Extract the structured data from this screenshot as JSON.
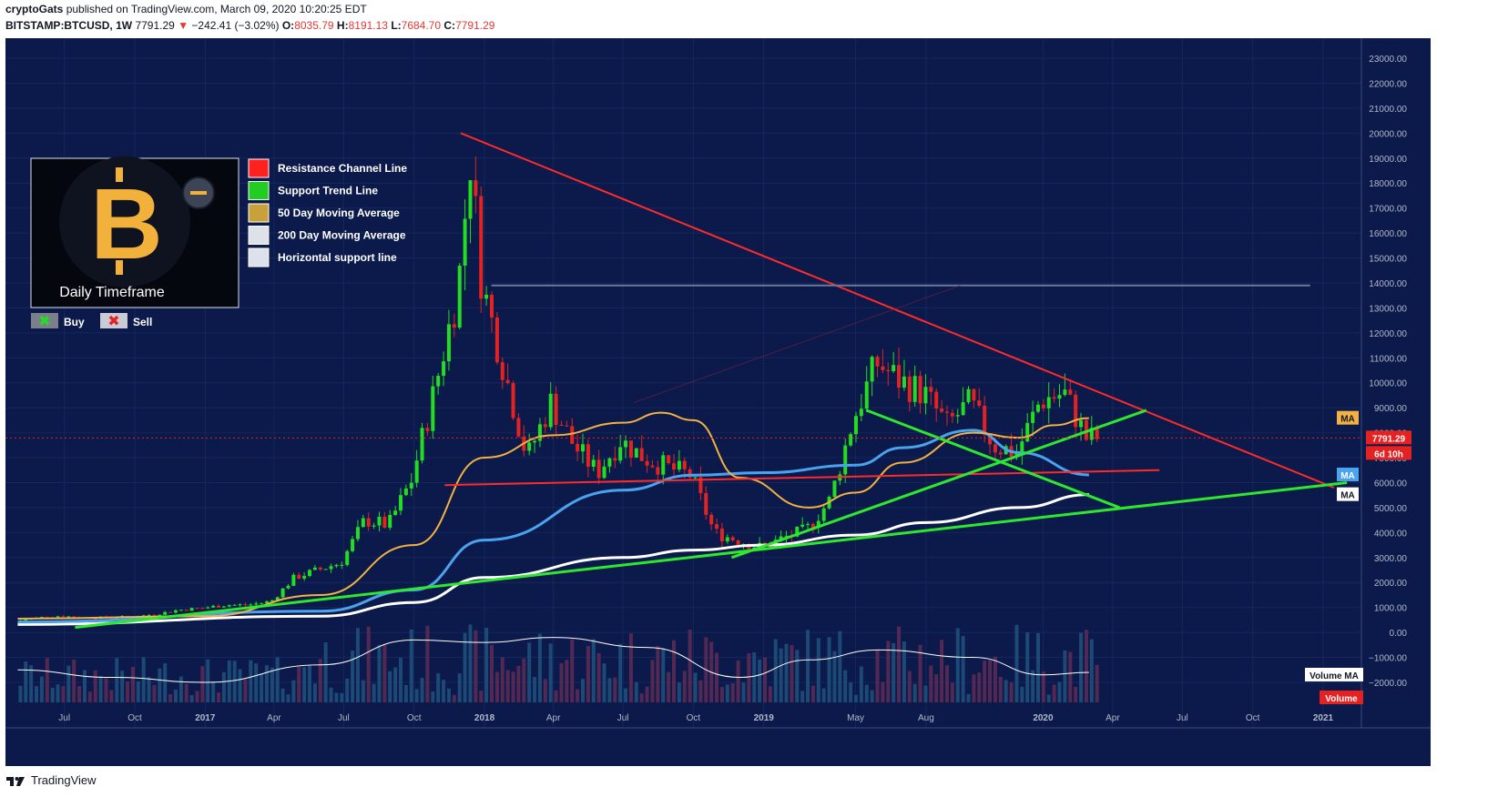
{
  "header": {
    "author": "cryptoGats",
    "published_text": "published on TradingView.com, March 09, 2020 10:20:25 EDT",
    "symbol": "BITSTAMP:BTCUSD, 1W",
    "last": "7791.29",
    "change_arrow": "▼",
    "change": "−242.41 (−3.02%)",
    "o_label": "O:",
    "o_value": "8035.79",
    "h_label": "H:",
    "h_value": "8191.13",
    "l_label": "L:",
    "l_value": "7684.70",
    "c_label": "C:",
    "c_value": "7791.29"
  },
  "footer": {
    "brand": "TradingView"
  },
  "colors": {
    "background": "#0b1a4a",
    "up": "#22dd22",
    "down": "#e52222",
    "resistance": "#ff2a2a",
    "support": "#2ee82e",
    "ma50": "#f2b142",
    "ma200": "#ffffff",
    "ma_blue": "#4aa3ef",
    "horizontal": "#6b7a9a"
  },
  "chart_data": {
    "type": "candlestick",
    "interval": "1W",
    "y_axis_labels": [
      "23000.00",
      "22000.00",
      "21000.00",
      "20000.00",
      "19000.00",
      "18000.00",
      "17000.00",
      "16000.00",
      "15000.00",
      "14000.00",
      "13000.00",
      "12000.00",
      "11000.00",
      "10000.00",
      "9000.00",
      "8000.00",
      "7000.00",
      "6000.00",
      "5000.00",
      "4000.00",
      "3000.00",
      "2000.00",
      "1000.00",
      "0.00",
      "−1000.00",
      "−2000.00"
    ],
    "ylim": [
      -2000,
      23000
    ],
    "x_axis_labels": [
      "Jul",
      "Oct",
      "2017",
      "Apr",
      "Jul",
      "Oct",
      "2018",
      "Apr",
      "Jul",
      "Oct",
      "2019",
      "May",
      "Aug",
      "2020",
      "Apr",
      "Jul",
      "Oct",
      "2021"
    ],
    "x_tick_dates": [
      "2016-07-01",
      "2016-10-01",
      "2017-01-01",
      "2017-04-01",
      "2017-07-01",
      "2017-10-01",
      "2018-01-01",
      "2018-04-01",
      "2018-07-01",
      "2018-10-01",
      "2019-01-01",
      "2019-05-01",
      "2019-08-01",
      "2020-01-01",
      "2020-04-01",
      "2020-07-01",
      "2020-10-01",
      "2021-01-01"
    ],
    "x_range": [
      "2016-04-15",
      "2021-02-20"
    ],
    "price_tags": {
      "last": "7791.29",
      "countdown": "6d 10h",
      "ma_label": "MA",
      "volume_ma": "Volume MA",
      "volume": "Volume"
    },
    "last_price": 7791.29,
    "ma_tag_values": {
      "ma50": 8580,
      "ma_blue": 6310,
      "ma200": 5520
    },
    "price_series": [
      [
        "2016-05-01",
        450
      ],
      [
        "2016-06-01",
        600
      ],
      [
        "2016-07-01",
        660
      ],
      [
        "2016-08-01",
        580
      ],
      [
        "2016-09-01",
        605
      ],
      [
        "2016-10-01",
        630
      ],
      [
        "2016-11-01",
        730
      ],
      [
        "2016-12-01",
        900
      ],
      [
        "2017-01-01",
        980
      ],
      [
        "2017-02-01",
        1100
      ],
      [
        "2017-03-01",
        1100
      ],
      [
        "2017-04-01",
        1250
      ],
      [
        "2017-05-01",
        2200
      ],
      [
        "2017-06-01",
        2500
      ],
      [
        "2017-07-01",
        2800
      ],
      [
        "2017-08-01",
        4500
      ],
      [
        "2017-09-01",
        4300
      ],
      [
        "2017-10-01",
        6100
      ],
      [
        "2017-11-01",
        9800
      ],
      [
        "2017-12-01",
        13800
      ],
      [
        "2017-12-17",
        19000
      ],
      [
        "2018-01-01",
        14000
      ],
      [
        "2018-02-01",
        10300
      ],
      [
        "2018-03-01",
        7000
      ],
      [
        "2018-04-01",
        9200
      ],
      [
        "2018-05-01",
        7500
      ],
      [
        "2018-06-01",
        6400
      ],
      [
        "2018-07-01",
        7700
      ],
      [
        "2018-08-01",
        7000
      ],
      [
        "2018-09-01",
        6600
      ],
      [
        "2018-10-01",
        6300
      ],
      [
        "2018-11-01",
        4000
      ],
      [
        "2018-12-01",
        3700
      ],
      [
        "2019-01-01",
        3400
      ],
      [
        "2019-02-01",
        3800
      ],
      [
        "2019-03-01",
        4100
      ],
      [
        "2019-04-01",
        5300
      ],
      [
        "2019-05-01",
        8500
      ],
      [
        "2019-06-01",
        10800
      ],
      [
        "2019-07-01",
        10100
      ],
      [
        "2019-08-01",
        9600
      ],
      [
        "2019-09-01",
        8300
      ],
      [
        "2019-10-01",
        9200
      ],
      [
        "2019-11-01",
        7500
      ],
      [
        "2019-12-01",
        7200
      ],
      [
        "2020-01-01",
        9300
      ],
      [
        "2020-02-01",
        9600
      ],
      [
        "2020-03-01",
        7791
      ]
    ],
    "ma50_series": [
      [
        "2016-05-01",
        550
      ],
      [
        "2017-01-01",
        650
      ],
      [
        "2017-06-01",
        1500
      ],
      [
        "2017-10-01",
        3500
      ],
      [
        "2018-01-01",
        7000
      ],
      [
        "2018-04-01",
        7900
      ],
      [
        "2018-07-01",
        8400
      ],
      [
        "2018-08-20",
        8800
      ],
      [
        "2018-10-01",
        8500
      ],
      [
        "2018-12-01",
        6200
      ],
      [
        "2019-03-01",
        5000
      ],
      [
        "2019-05-01",
        5600
      ],
      [
        "2019-07-01",
        6800
      ],
      [
        "2019-10-01",
        8000
      ],
      [
        "2019-12-01",
        7800
      ],
      [
        "2020-01-15",
        8300
      ],
      [
        "2020-03-01",
        8580
      ]
    ],
    "ma_blue_series": [
      [
        "2016-05-01",
        420
      ],
      [
        "2017-06-01",
        850
      ],
      [
        "2017-10-01",
        1700
      ],
      [
        "2018-01-01",
        3700
      ],
      [
        "2018-07-01",
        5700
      ],
      [
        "2018-10-01",
        6300
      ],
      [
        "2019-01-01",
        6400
      ],
      [
        "2019-05-01",
        6700
      ],
      [
        "2019-07-01",
        7400
      ],
      [
        "2019-10-01",
        8100
      ],
      [
        "2019-12-01",
        7200
      ],
      [
        "2020-03-01",
        6310
      ]
    ],
    "ma200_series": [
      [
        "2016-05-01",
        320
      ],
      [
        "2017-06-01",
        650
      ],
      [
        "2017-10-01",
        1200
      ],
      [
        "2018-01-01",
        2200
      ],
      [
        "2018-07-01",
        3000
      ],
      [
        "2018-10-01",
        3300
      ],
      [
        "2019-01-01",
        3500
      ],
      [
        "2019-05-01",
        3900
      ],
      [
        "2019-08-01",
        4400
      ],
      [
        "2019-12-01",
        5000
      ],
      [
        "2020-03-01",
        5520
      ]
    ],
    "trend_lines": [
      {
        "kind": "resistance",
        "from": [
          "2017-12-01",
          20000
        ],
        "to": [
          "2021-01-15",
          5800
        ]
      },
      {
        "kind": "resistance",
        "from": [
          "2017-11-10",
          5900
        ],
        "to": [
          "2020-06-01",
          6500
        ]
      },
      {
        "kind": "support",
        "from": [
          "2016-07-15",
          200
        ],
        "to": [
          "2021-02-01",
          6000
        ]
      },
      {
        "kind": "support",
        "from": [
          "2018-11-20",
          3000
        ],
        "to": [
          "2020-05-15",
          8900
        ]
      },
      {
        "kind": "support",
        "from": [
          "2019-05-15",
          8900
        ],
        "to": [
          "2020-04-10",
          5000
        ]
      },
      {
        "kind": "horizontal",
        "from": [
          "2018-01-10",
          13900
        ],
        "to": [
          "2020-12-15",
          13900
        ]
      }
    ],
    "volume_ma_series": [
      [
        "2016-05-01",
        -1500
      ],
      [
        "2016-09-01",
        -1800
      ],
      [
        "2017-01-01",
        -2000
      ],
      [
        "2017-06-01",
        -1300
      ],
      [
        "2017-10-01",
        -300
      ],
      [
        "2018-01-01",
        -400
      ],
      [
        "2018-04-01",
        -200
      ],
      [
        "2018-08-01",
        -600
      ],
      [
        "2018-12-01",
        -1800
      ],
      [
        "2019-03-01",
        -1100
      ],
      [
        "2019-06-01",
        -700
      ],
      [
        "2019-10-01",
        -1000
      ],
      [
        "2020-01-01",
        -1700
      ],
      [
        "2020-03-01",
        -1600
      ]
    ]
  },
  "legend": {
    "items": [
      {
        "label": "Resistance Channel Line",
        "color": "#ff2020"
      },
      {
        "label": "Support Trend Line",
        "color": "#22cc22"
      },
      {
        "label": "50 Day Moving Average",
        "color": "#c9a13a"
      },
      {
        "label": "200 Day Moving Average",
        "color": "#dde1ea"
      },
      {
        "label": "Horizontal support line",
        "color": "#dde1ea"
      }
    ],
    "badge_caption": "Daily Timeframe",
    "buy_label": "Buy",
    "sell_label": "Sell"
  }
}
